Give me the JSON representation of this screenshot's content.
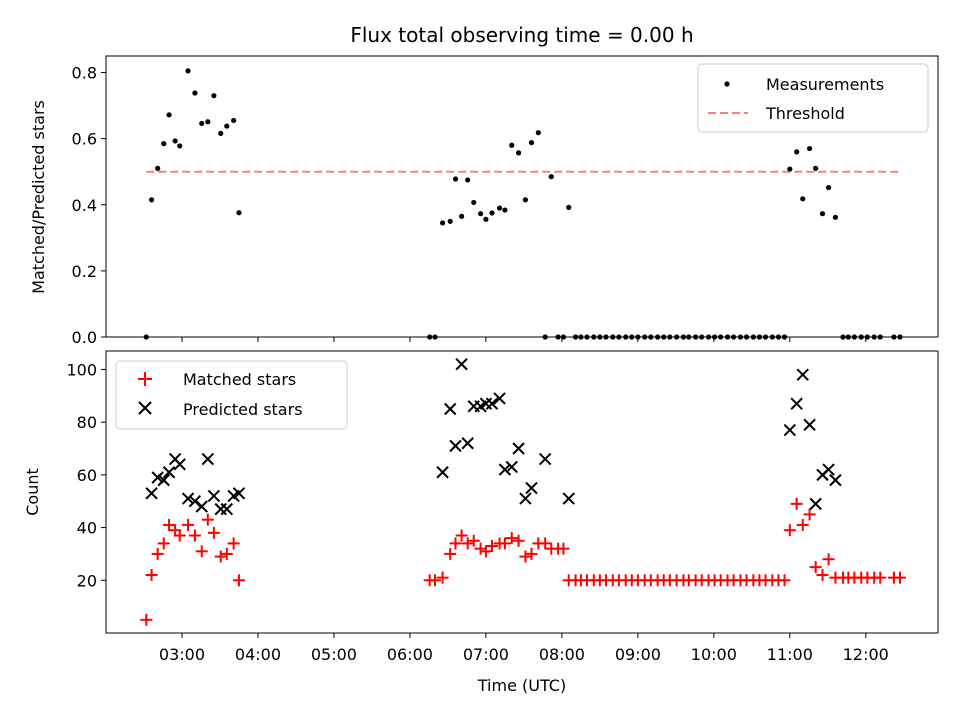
{
  "chart_data": [
    {
      "type": "scatter",
      "title": "Flux total observing time = 0.00 h",
      "xlabel": "",
      "ylabel": "Matched/Predicted stars",
      "x_range_hours": [
        2.0,
        12.95
      ],
      "ylim": [
        0,
        0.85
      ],
      "yticks": [
        0.0,
        0.2,
        0.4,
        0.6,
        0.8
      ],
      "ytick_labels": [
        "0.0",
        "0.2",
        "0.4",
        "0.6",
        "0.8"
      ],
      "legend_position": "top-right",
      "series": [
        {
          "name": "Measurements",
          "marker": "dot",
          "color": "#000000",
          "points": [
            [
              2.53,
              0.0
            ],
            [
              2.6,
              0.415
            ],
            [
              2.68,
              0.51
            ],
            [
              2.76,
              0.585
            ],
            [
              2.83,
              0.672
            ],
            [
              2.91,
              0.593
            ],
            [
              2.97,
              0.578
            ],
            [
              3.08,
              0.805
            ],
            [
              3.17,
              0.738
            ],
            [
              3.26,
              0.646
            ],
            [
              3.34,
              0.651
            ],
            [
              3.42,
              0.73
            ],
            [
              3.51,
              0.616
            ],
            [
              3.59,
              0.638
            ],
            [
              3.68,
              0.655
            ],
            [
              3.75,
              0.376
            ],
            [
              6.26,
              0.0
            ],
            [
              6.33,
              0.0
            ],
            [
              6.43,
              0.345
            ],
            [
              6.53,
              0.35
            ],
            [
              6.6,
              0.478
            ],
            [
              6.68,
              0.365
            ],
            [
              6.76,
              0.475
            ],
            [
              6.84,
              0.407
            ],
            [
              6.93,
              0.373
            ],
            [
              7.0,
              0.356
            ],
            [
              7.08,
              0.375
            ],
            [
              7.18,
              0.39
            ],
            [
              7.25,
              0.384
            ],
            [
              7.34,
              0.58
            ],
            [
              7.43,
              0.557
            ],
            [
              7.52,
              0.415
            ],
            [
              7.6,
              0.588
            ],
            [
              7.69,
              0.618
            ],
            [
              7.78,
              0.0
            ],
            [
              7.86,
              0.485
            ],
            [
              7.95,
              0.0
            ],
            [
              8.02,
              0.0
            ],
            [
              8.09,
              0.392
            ],
            [
              8.18,
              0.0
            ],
            [
              8.25,
              0.0
            ],
            [
              8.33,
              0.0
            ],
            [
              8.42,
              0.0
            ],
            [
              8.5,
              0.0
            ],
            [
              8.58,
              0.0
            ],
            [
              8.67,
              0.0
            ],
            [
              8.75,
              0.0
            ],
            [
              8.84,
              0.0
            ],
            [
              8.92,
              0.0
            ],
            [
              9.0,
              0.0
            ],
            [
              9.09,
              0.0
            ],
            [
              9.17,
              0.0
            ],
            [
              9.26,
              0.0
            ],
            [
              9.34,
              0.0
            ],
            [
              9.42,
              0.0
            ],
            [
              9.51,
              0.0
            ],
            [
              9.6,
              0.0
            ],
            [
              9.67,
              0.0
            ],
            [
              9.76,
              0.0
            ],
            [
              9.84,
              0.0
            ],
            [
              9.93,
              0.0
            ],
            [
              10.01,
              0.0
            ],
            [
              10.09,
              0.0
            ],
            [
              10.18,
              0.0
            ],
            [
              10.26,
              0.0
            ],
            [
              10.35,
              0.0
            ],
            [
              10.43,
              0.0
            ],
            [
              10.52,
              0.0
            ],
            [
              10.6,
              0.0
            ],
            [
              10.68,
              0.0
            ],
            [
              10.77,
              0.0
            ],
            [
              10.85,
              0.0
            ],
            [
              10.93,
              0.0
            ],
            [
              11.0,
              0.508
            ],
            [
              11.09,
              0.56
            ],
            [
              11.17,
              0.418
            ],
            [
              11.26,
              0.57
            ],
            [
              11.34,
              0.51
            ],
            [
              11.43,
              0.373
            ],
            [
              11.51,
              0.452
            ],
            [
              11.6,
              0.362
            ],
            [
              11.7,
              0.0
            ],
            [
              11.77,
              0.0
            ],
            [
              11.85,
              0.0
            ],
            [
              11.94,
              0.0
            ],
            [
              12.02,
              0.0
            ],
            [
              12.11,
              0.0
            ],
            [
              12.19,
              0.0
            ],
            [
              12.37,
              0.0
            ],
            [
              12.45,
              0.0
            ]
          ]
        },
        {
          "name": "Threshold",
          "marker": "dashed-line",
          "color": "#ff7b7b",
          "points": [
            [
              2.53,
              0.5
            ],
            [
              12.45,
              0.5
            ]
          ]
        }
      ]
    },
    {
      "type": "scatter",
      "title": "",
      "xlabel": "Time (UTC)",
      "ylabel": "Count",
      "x_range_hours": [
        2.0,
        12.95
      ],
      "ylim": [
        0,
        107
      ],
      "yticks": [
        20,
        40,
        60,
        80,
        100
      ],
      "ytick_labels": [
        "20",
        "40",
        "60",
        "80",
        "100"
      ],
      "xticks_hours": [
        3,
        4,
        5,
        6,
        7,
        8,
        9,
        10,
        11,
        12
      ],
      "xtick_labels": [
        "03:00",
        "04:00",
        "05:00",
        "06:00",
        "07:00",
        "08:00",
        "09:00",
        "10:00",
        "11:00",
        "12:00"
      ],
      "legend_position": "top-left",
      "series": [
        {
          "name": "Matched stars",
          "marker": "plus",
          "color": "#ff0000",
          "points": [
            [
              2.53,
              5
            ],
            [
              2.6,
              22
            ],
            [
              2.68,
              30
            ],
            [
              2.76,
              34
            ],
            [
              2.83,
              41
            ],
            [
              2.91,
              39
            ],
            [
              2.97,
              37
            ],
            [
              3.08,
              41
            ],
            [
              3.17,
              37
            ],
            [
              3.26,
              31
            ],
            [
              3.34,
              43
            ],
            [
              3.42,
              38
            ],
            [
              3.51,
              29
            ],
            [
              3.59,
              30
            ],
            [
              3.68,
              34
            ],
            [
              3.75,
              20
            ],
            [
              6.26,
              20
            ],
            [
              6.33,
              20
            ],
            [
              6.43,
              21
            ],
            [
              6.53,
              30
            ],
            [
              6.6,
              34
            ],
            [
              6.68,
              37
            ],
            [
              6.76,
              34
            ],
            [
              6.84,
              35
            ],
            [
              6.93,
              32
            ],
            [
              7.0,
              31
            ],
            [
              7.08,
              33
            ],
            [
              7.18,
              34
            ],
            [
              7.25,
              34
            ],
            [
              7.34,
              36
            ],
            [
              7.43,
              35
            ],
            [
              7.52,
              29
            ],
            [
              7.6,
              30
            ],
            [
              7.69,
              34
            ],
            [
              7.78,
              34
            ],
            [
              7.86,
              32
            ],
            [
              7.95,
              32
            ],
            [
              8.02,
              32
            ],
            [
              8.09,
              20
            ],
            [
              8.18,
              20
            ],
            [
              8.25,
              20
            ],
            [
              8.33,
              20
            ],
            [
              8.42,
              20
            ],
            [
              8.5,
              20
            ],
            [
              8.58,
              20
            ],
            [
              8.67,
              20
            ],
            [
              8.75,
              20
            ],
            [
              8.84,
              20
            ],
            [
              8.92,
              20
            ],
            [
              9.0,
              20
            ],
            [
              9.09,
              20
            ],
            [
              9.17,
              20
            ],
            [
              9.26,
              20
            ],
            [
              9.34,
              20
            ],
            [
              9.42,
              20
            ],
            [
              9.51,
              20
            ],
            [
              9.6,
              20
            ],
            [
              9.67,
              20
            ],
            [
              9.76,
              20
            ],
            [
              9.84,
              20
            ],
            [
              9.93,
              20
            ],
            [
              10.01,
              20
            ],
            [
              10.09,
              20
            ],
            [
              10.18,
              20
            ],
            [
              10.26,
              20
            ],
            [
              10.35,
              20
            ],
            [
              10.43,
              20
            ],
            [
              10.52,
              20
            ],
            [
              10.6,
              20
            ],
            [
              10.68,
              20
            ],
            [
              10.77,
              20
            ],
            [
              10.85,
              20
            ],
            [
              10.93,
              20
            ],
            [
              11.0,
              39
            ],
            [
              11.09,
              49
            ],
            [
              11.17,
              41
            ],
            [
              11.26,
              45
            ],
            [
              11.34,
              25
            ],
            [
              11.43,
              22
            ],
            [
              11.51,
              28
            ],
            [
              11.6,
              21
            ],
            [
              11.7,
              21
            ],
            [
              11.77,
              21
            ],
            [
              11.85,
              21
            ],
            [
              11.94,
              21
            ],
            [
              12.02,
              21
            ],
            [
              12.11,
              21
            ],
            [
              12.19,
              21
            ],
            [
              12.37,
              21
            ],
            [
              12.45,
              21
            ]
          ]
        },
        {
          "name": "Predicted stars",
          "marker": "x",
          "color": "#000000",
          "points": [
            [
              2.6,
              53
            ],
            [
              2.68,
              59
            ],
            [
              2.76,
              58
            ],
            [
              2.83,
              61
            ],
            [
              2.91,
              66
            ],
            [
              2.97,
              64
            ],
            [
              3.08,
              51
            ],
            [
              3.17,
              50
            ],
            [
              3.26,
              48
            ],
            [
              3.34,
              66
            ],
            [
              3.42,
              52
            ],
            [
              3.51,
              47
            ],
            [
              3.59,
              47
            ],
            [
              3.68,
              52
            ],
            [
              3.75,
              53
            ],
            [
              6.43,
              61
            ],
            [
              6.53,
              85
            ],
            [
              6.6,
              71
            ],
            [
              6.68,
              102
            ],
            [
              6.76,
              72
            ],
            [
              6.84,
              86
            ],
            [
              6.93,
              86
            ],
            [
              7.0,
              87
            ],
            [
              7.08,
              87
            ],
            [
              7.18,
              89
            ],
            [
              7.25,
              62
            ],
            [
              7.34,
              63
            ],
            [
              7.43,
              70
            ],
            [
              7.52,
              51
            ],
            [
              7.6,
              55
            ],
            [
              7.78,
              66
            ],
            [
              8.09,
              51
            ],
            [
              11.0,
              77
            ],
            [
              11.09,
              87
            ],
            [
              11.17,
              98
            ],
            [
              11.26,
              79
            ],
            [
              11.34,
              49
            ],
            [
              11.43,
              60
            ],
            [
              11.51,
              62
            ],
            [
              11.6,
              58
            ]
          ]
        }
      ]
    }
  ]
}
